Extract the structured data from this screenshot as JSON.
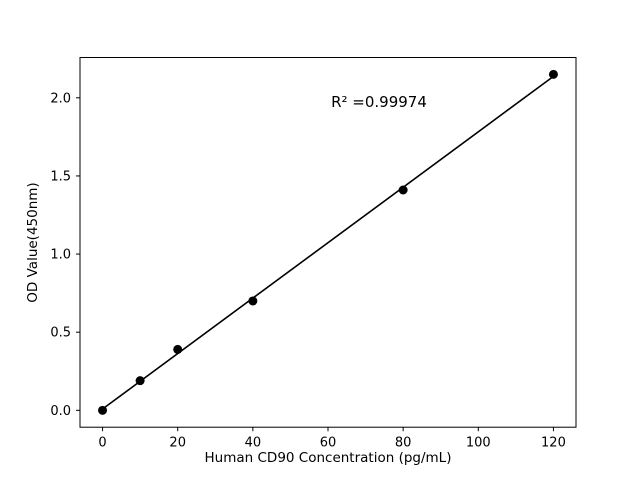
{
  "chart_data": {
    "type": "scatter",
    "title": "",
    "xlabel": "Human CD90 Concentration (pg/mL)",
    "ylabel": "OD Value(450nm)",
    "x": [
      0,
      10,
      20,
      40,
      80,
      120
    ],
    "y": [
      0.0,
      0.19,
      0.39,
      0.7,
      1.41,
      2.15
    ],
    "annotation": "R² =0.99974",
    "fit_line": true,
    "xlim": [
      -6,
      126
    ],
    "ylim": [
      -0.108,
      2.258
    ],
    "xticks": [
      "0",
      "20",
      "40",
      "60",
      "80",
      "100",
      "120"
    ],
    "yticks": [
      "0.0",
      "0.5",
      "1.0",
      "1.5",
      "2.0"
    ],
    "grid": false,
    "legend": "none",
    "colors": {
      "marker": "#000000",
      "line": "#000000",
      "spine": "#000000",
      "background": "#ffffff"
    }
  }
}
